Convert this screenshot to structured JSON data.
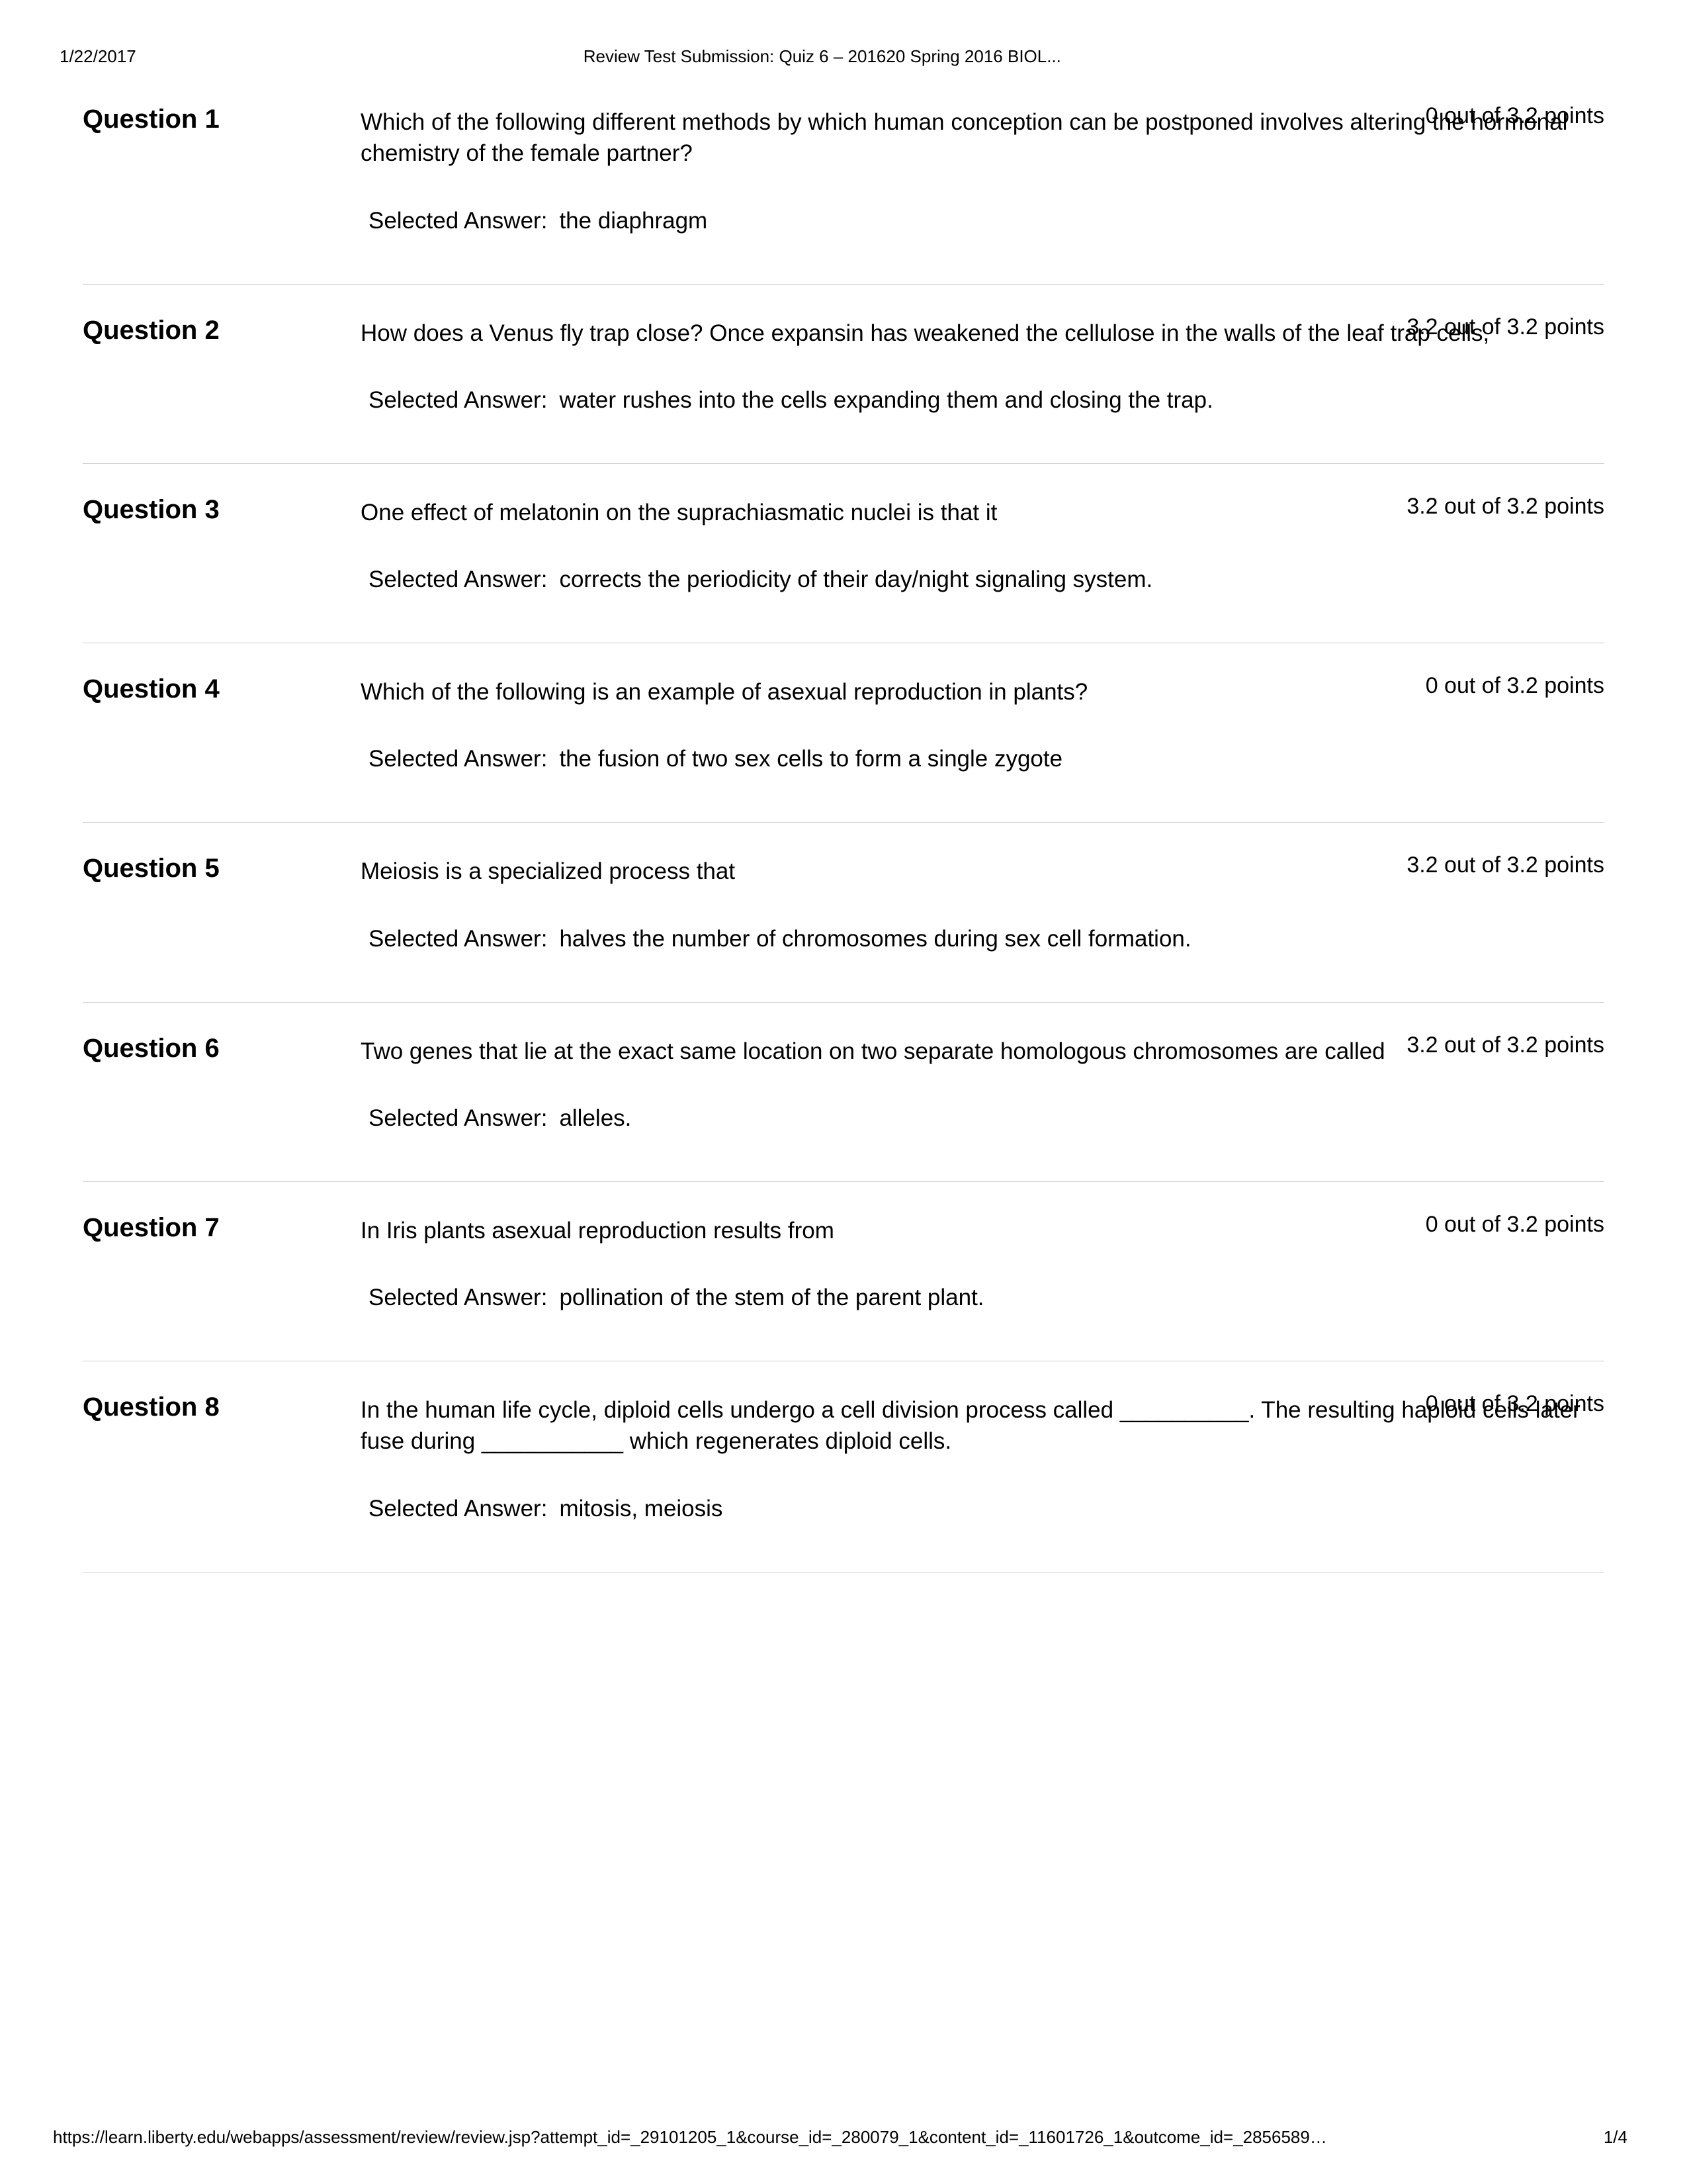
{
  "header": {
    "date": "1/22/2017",
    "title": "Review Test Submission: Quiz 6 – 201620 Spring 2016 BIOL..."
  },
  "selected_answer_label": "Selected Answer:",
  "questions": [
    {
      "label": "Question 1",
      "points": "0 out of 3.2 points",
      "text": "Which of the following different methods by which human conception can be postponed involves altering the hormonal chemistry of the female partner?",
      "answer": "the diaphragm"
    },
    {
      "label": "Question 2",
      "points": "3.2 out of 3.2 points",
      "text": "How does a Venus fly trap close? Once expansin has weakened the cellulose in the walls of the leaf trap cells,",
      "answer": "water rushes into the cells expanding them and closing the trap."
    },
    {
      "label": "Question 3",
      "points": "3.2 out of 3.2 points",
      "text": "One effect of melatonin on the suprachiasmatic nuclei is that it",
      "answer": "corrects the periodicity of their day/night signaling system."
    },
    {
      "label": "Question 4",
      "points": "0 out of 3.2 points",
      "text": "Which of the following is an example of asexual reproduction in plants?",
      "answer": "the fusion of two sex cells to form a single zygote"
    },
    {
      "label": "Question 5",
      "points": "3.2 out of 3.2 points",
      "text": "Meiosis is a specialized process that",
      "answer": "halves the number of chromosomes during sex cell formation."
    },
    {
      "label": "Question 6",
      "points": "3.2 out of 3.2 points",
      "text": "Two genes that lie at the exact same location on two separate homologous chromosomes are called",
      "answer": "alleles."
    },
    {
      "label": "Question 7",
      "points": "0 out of 3.2 points",
      "text": "In Iris plants asexual reproduction results from",
      "answer": "pollination of the stem of the parent plant."
    },
    {
      "label": "Question 8",
      "points": "0 out of 3.2 points",
      "text": "In the human life cycle, diploid cells undergo a cell division process called __________. The resulting haploid cells later fuse during ___________ which regenerates diploid cells.",
      "answer": "mitosis,  meiosis"
    }
  ],
  "footer": {
    "url": "https://learn.liberty.edu/webapps/assessment/review/review.jsp?attempt_id=_29101205_1&course_id=_280079_1&content_id=_11601726_1&outcome_id=_2856589…",
    "page": "1/4"
  }
}
